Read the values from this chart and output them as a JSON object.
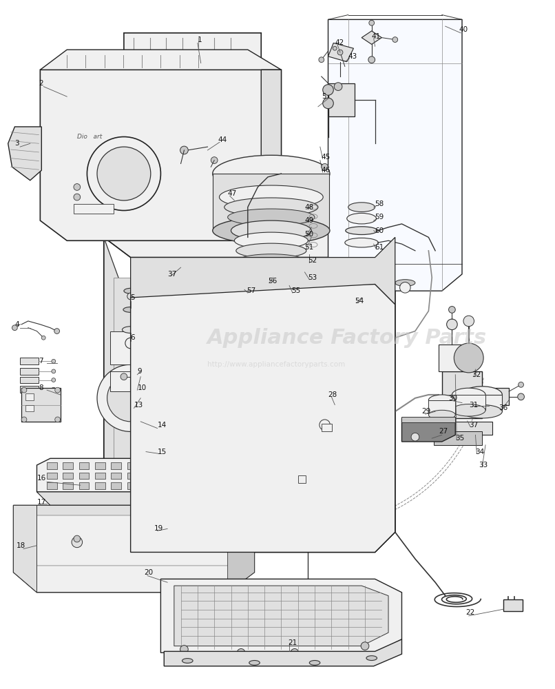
{
  "bg_color": "#ffffff",
  "line_color": "#333333",
  "dark_line": "#222222",
  "mid_gray": "#888888",
  "light_gray": "#cccccc",
  "fill_light": "#f0f0f0",
  "fill_mid": "#e0e0e0",
  "fill_dark": "#c8c8c8",
  "watermark1": "Appliance Factory Parts",
  "watermark2": "http://www.appliancefactoryparts.com",
  "wm_color": "#cccccc",
  "wm_alpha": 0.6,
  "label_color": "#111111",
  "label_fs": 7.5,
  "fig_w": 8.06,
  "fig_h": 10.0,
  "dpi": 100
}
